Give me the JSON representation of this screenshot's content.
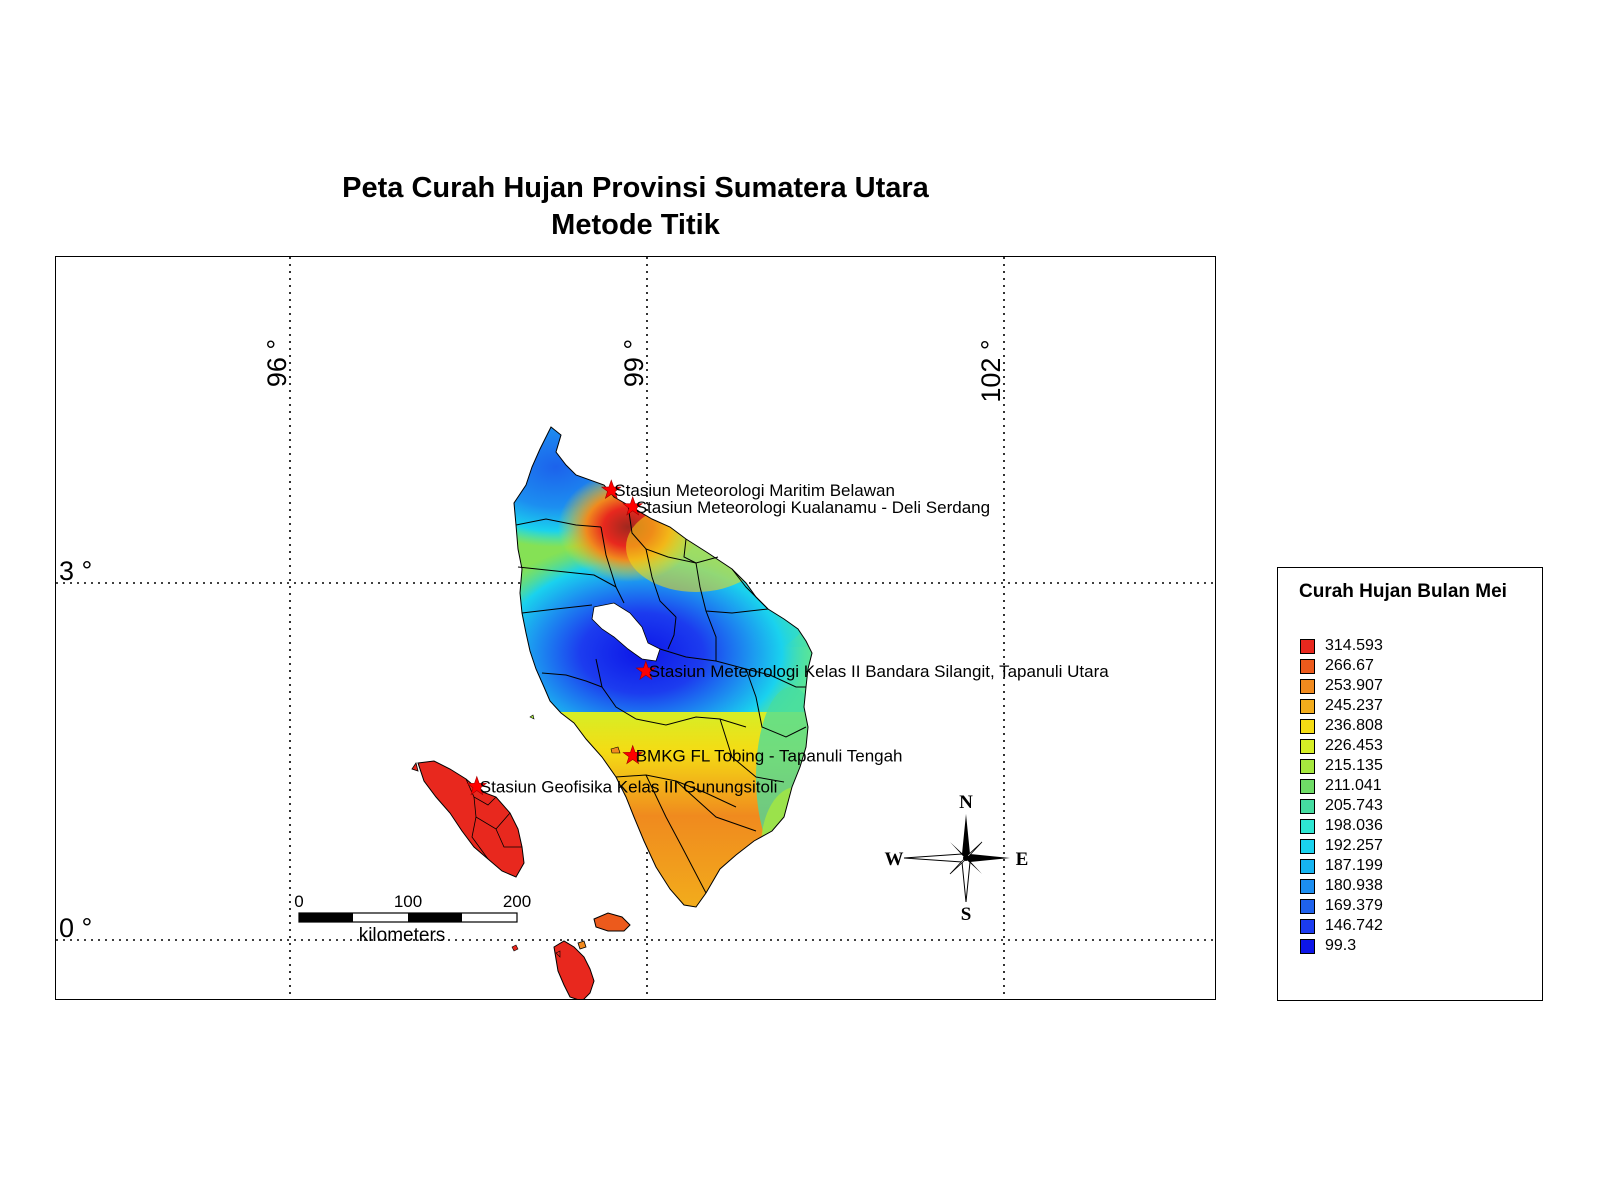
{
  "title": {
    "line1": "Peta Curah Hujan Provinsi Sumatera Utara",
    "line2": "Metode Titik"
  },
  "graticule": {
    "longitudes": [
      "96 °",
      "99 °",
      "102 °"
    ],
    "latitudes": [
      "3 °",
      "0 °"
    ]
  },
  "stations": [
    {
      "name": "Stasiun Meteorologi Maritim Belawan",
      "lon": 98.7,
      "lat": 3.78
    },
    {
      "name": "Stasiun Meteorologi Kualanamu - Deli Serdang",
      "lon": 98.88,
      "lat": 3.64
    },
    {
      "name": "Stasiun Meteorologi Kelas II Bandara Silangit, Tapanuli Utara",
      "lon": 98.99,
      "lat": 2.26
    },
    {
      "name": "BMKG FL Tobing - Tapanuli Tengah",
      "lon": 98.88,
      "lat": 1.55
    },
    {
      "name": "Stasiun Geofisika Kelas III Gunungsitoli",
      "lon": 97.57,
      "lat": 1.29
    }
  ],
  "scale_bar": {
    "ticks": [
      "0",
      "100",
      "200"
    ],
    "unit": "kilometers"
  },
  "north_arrow": {
    "n": "N",
    "s": "S",
    "e": "E",
    "w": "W"
  },
  "legend": {
    "title": "Curah Hujan Bulan Mei",
    "items": [
      {
        "label": "314.593",
        "color": "#e8281e"
      },
      {
        "label": "266.67",
        "color": "#ec5a1c"
      },
      {
        "label": "253.907",
        "color": "#f08a1e"
      },
      {
        "label": "245.237",
        "color": "#f2ac1c"
      },
      {
        "label": "236.808",
        "color": "#f4dc14"
      },
      {
        "label": "226.453",
        "color": "#d6ee26"
      },
      {
        "label": "215.135",
        "color": "#a6e83e"
      },
      {
        "label": "211.041",
        "color": "#6fdc66"
      },
      {
        "label": "205.743",
        "color": "#45dca0"
      },
      {
        "label": "198.036",
        "color": "#2ee6d2"
      },
      {
        "label": "192.257",
        "color": "#1ad2ee"
      },
      {
        "label": "187.199",
        "color": "#16b4f0"
      },
      {
        "label": "180.938",
        "color": "#1c8ef0"
      },
      {
        "label": "169.379",
        "color": "#1f62ec"
      },
      {
        "label": "146.742",
        "color": "#1c3cef"
      },
      {
        "label": "99.3",
        "color": "#0d16e8"
      }
    ]
  }
}
